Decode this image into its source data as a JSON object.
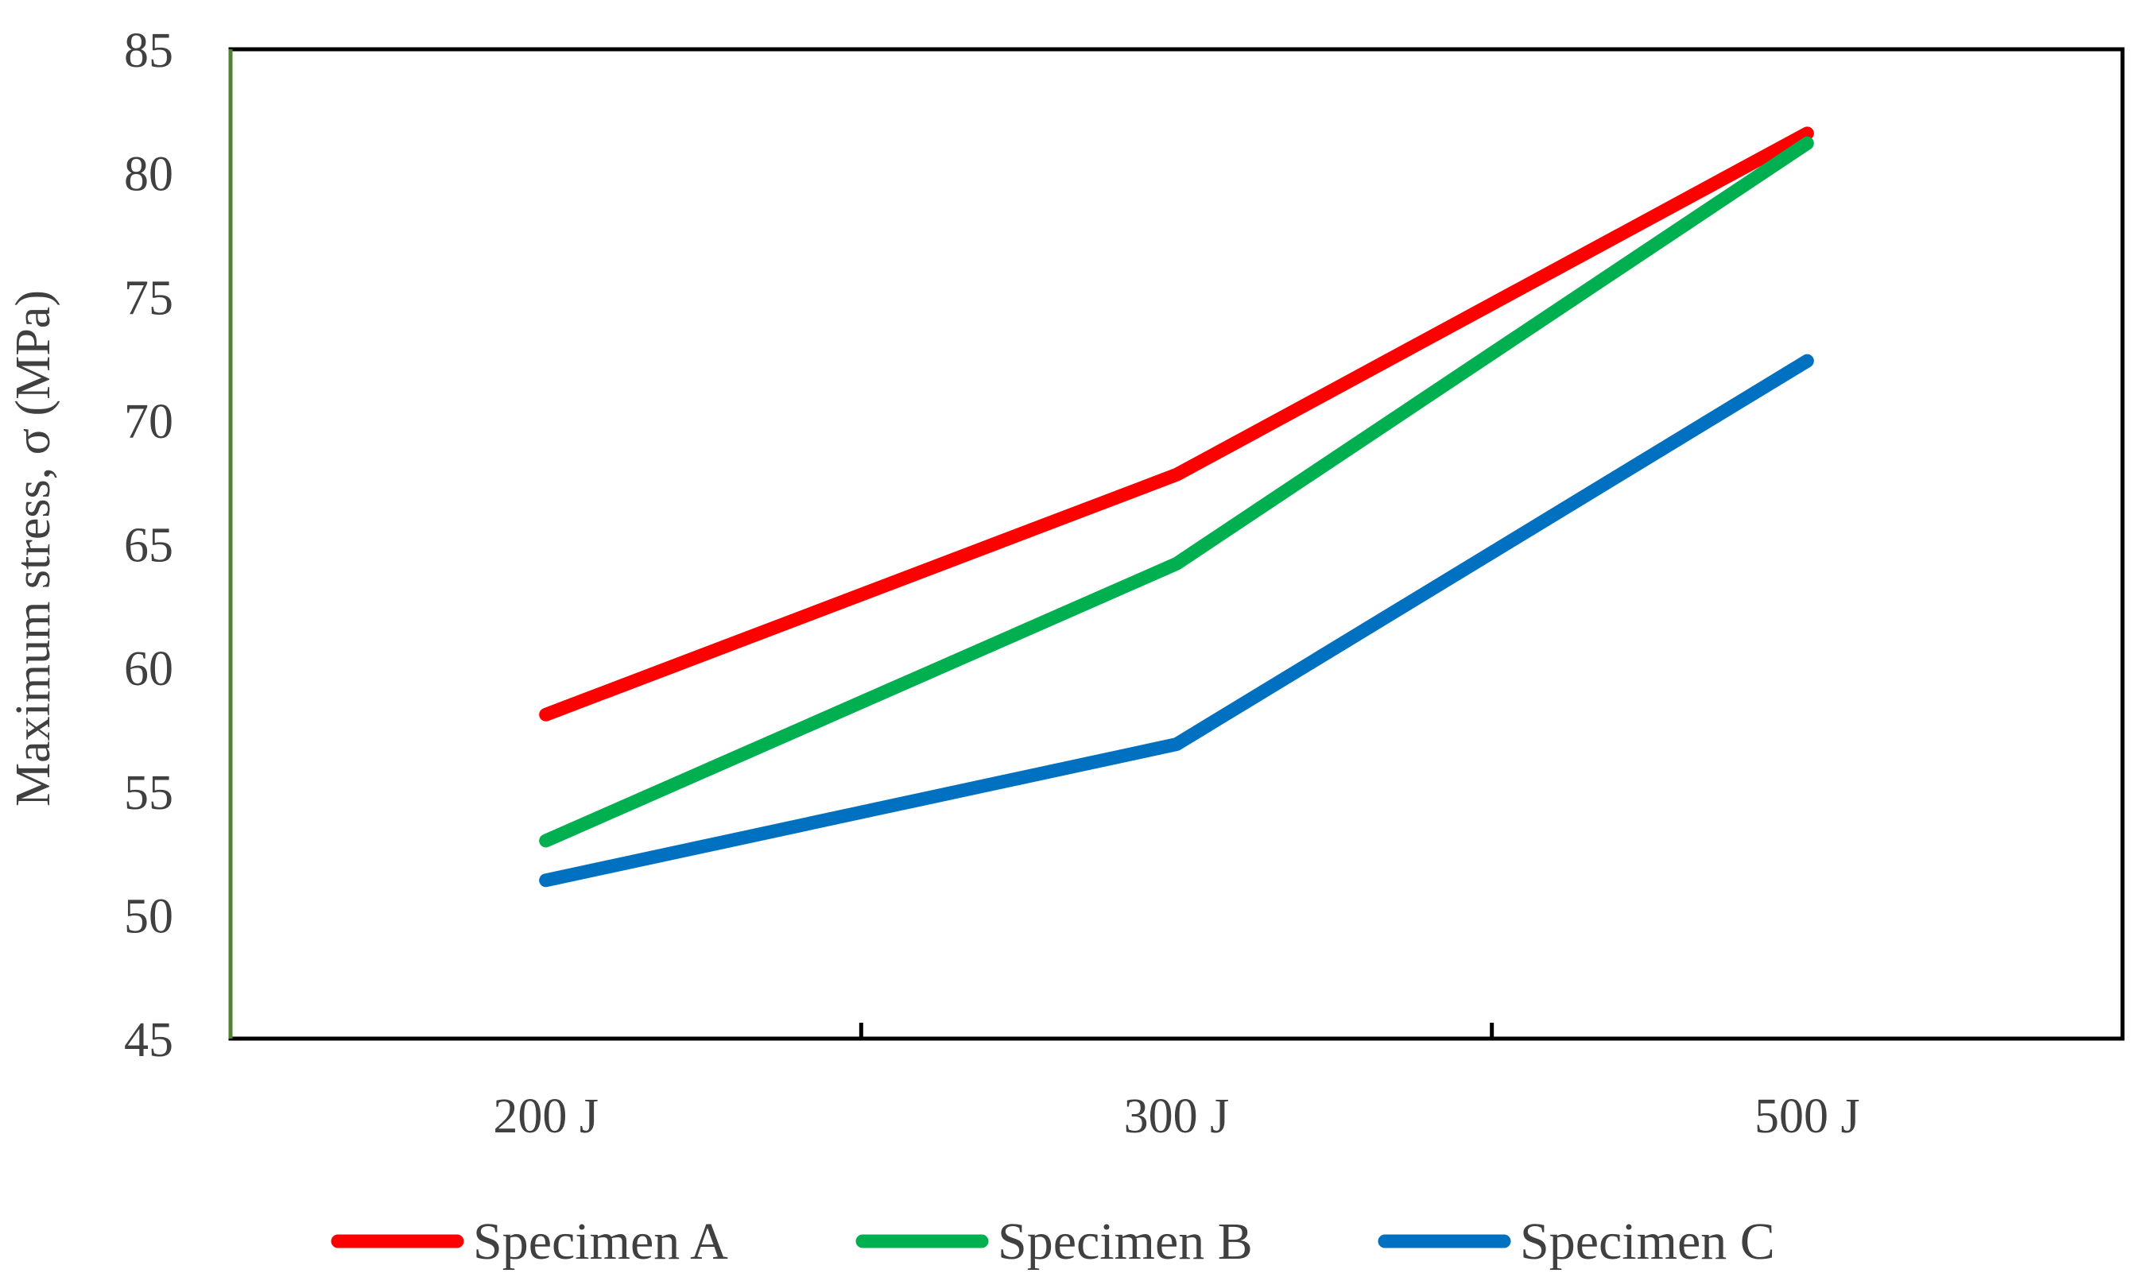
{
  "chart_data": {
    "type": "line",
    "title": "",
    "xlabel": "",
    "ylabel": "Maximum stress, σ (MPa)",
    "categories": [
      "200 J",
      "300 J",
      "500 J"
    ],
    "ylim": [
      45,
      85
    ],
    "yticks": [
      45,
      50,
      55,
      60,
      65,
      70,
      75,
      80,
      85
    ],
    "grid": false,
    "legend_position": "bottom",
    "series": [
      {
        "name": "Specimen A",
        "color": "#ff0000",
        "values": [
          58.1,
          67.8,
          81.6
        ]
      },
      {
        "name": "Specimen B",
        "color": "#00b050",
        "values": [
          53.0,
          64.2,
          81.2
        ]
      },
      {
        "name": "Specimen C",
        "color": "#0070c0",
        "values": [
          51.4,
          56.9,
          72.4
        ]
      }
    ]
  }
}
